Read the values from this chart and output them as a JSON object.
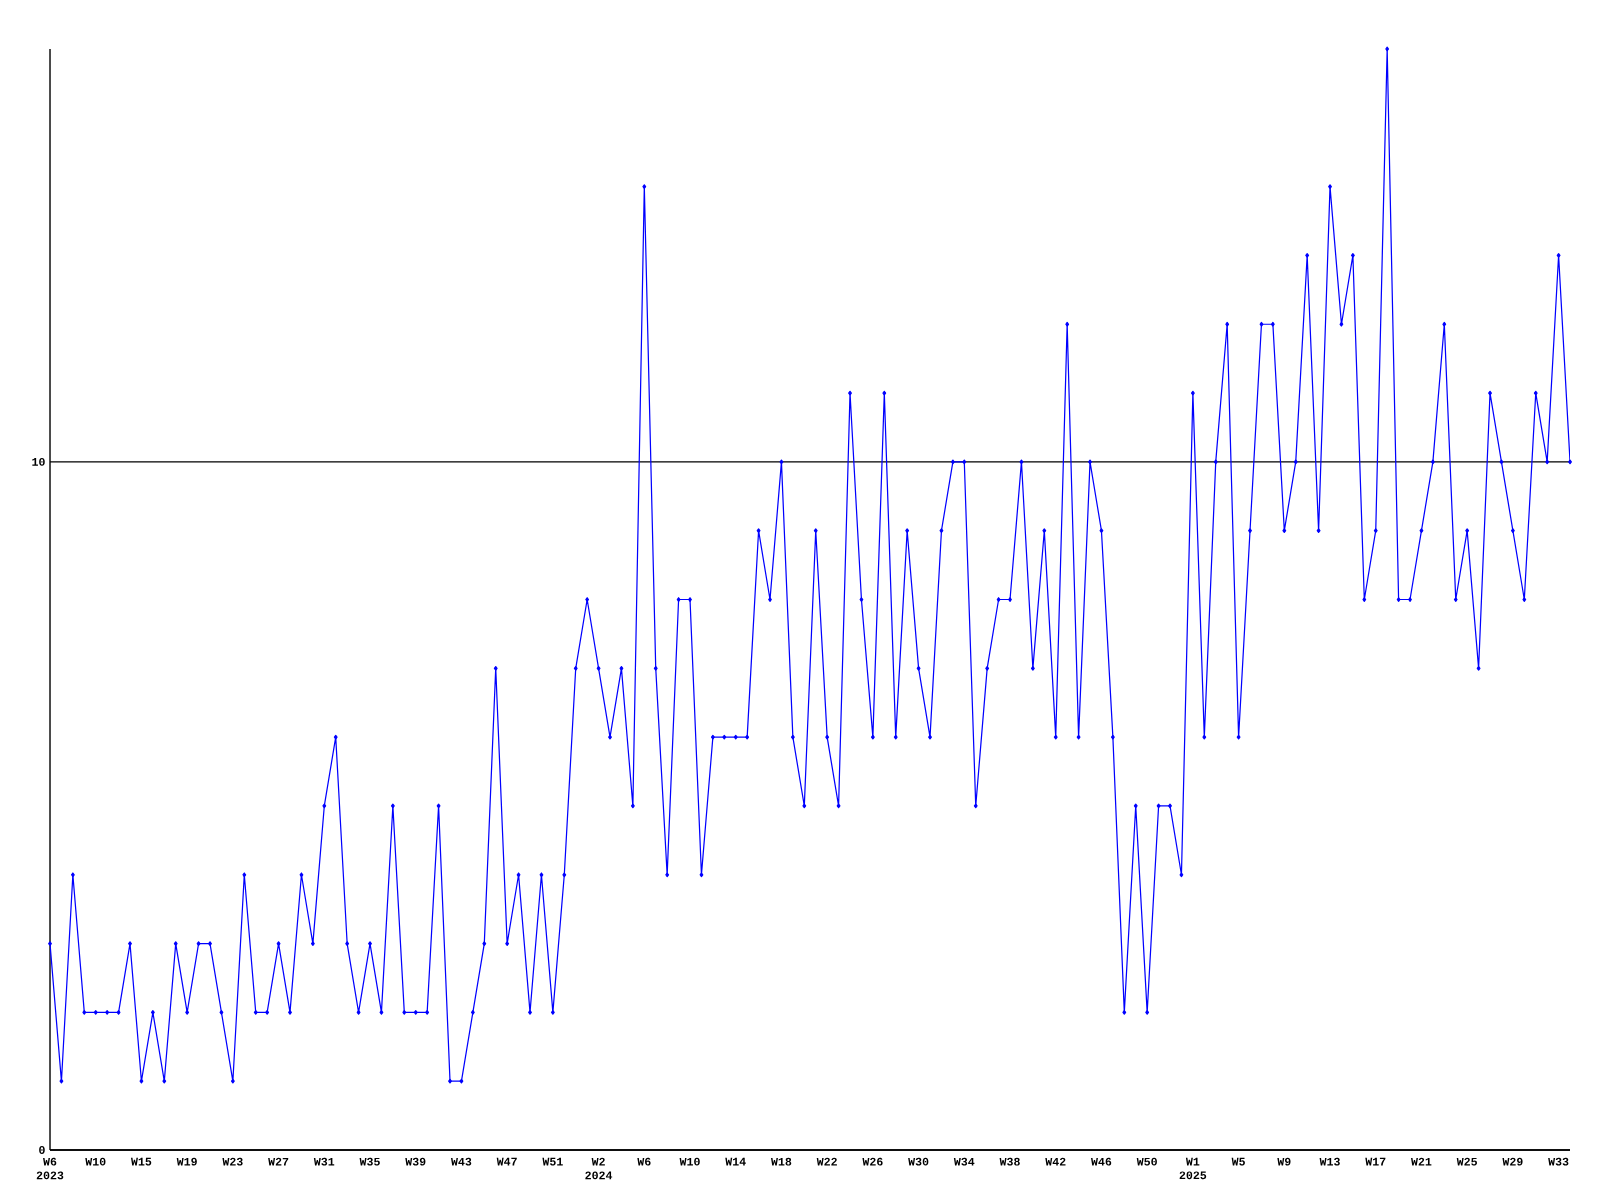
{
  "chart_data": {
    "type": "line",
    "categories": [
      "W6 2023",
      null,
      null,
      null,
      "W10",
      null,
      null,
      null,
      "W15",
      null,
      null,
      null,
      "W19",
      null,
      null,
      null,
      "W23",
      null,
      null,
      null,
      "W27",
      null,
      null,
      null,
      "W31",
      null,
      null,
      null,
      "W35",
      null,
      null,
      null,
      "W39",
      null,
      null,
      null,
      "W43",
      null,
      null,
      null,
      "W47",
      null,
      null,
      null,
      "W51",
      null,
      null,
      null,
      "W2 2024",
      null,
      null,
      null,
      "W6",
      null,
      null,
      null,
      "W10",
      null,
      null,
      null,
      "W14",
      null,
      null,
      null,
      "W18",
      null,
      null,
      null,
      "W22",
      null,
      null,
      null,
      "W26",
      null,
      null,
      null,
      "W30",
      null,
      null,
      null,
      "W34",
      null,
      null,
      null,
      "W38",
      null,
      null,
      null,
      "W42",
      null,
      null,
      null,
      "W46",
      null,
      null,
      null,
      "W50",
      null,
      null,
      null,
      "W1 2025",
      null,
      null,
      null,
      "W5",
      null,
      null,
      null,
      "W9",
      null,
      null,
      null,
      "W13",
      null,
      null,
      null,
      "W17",
      null,
      null,
      null,
      "W21",
      null,
      null,
      null,
      "W25",
      null,
      null,
      null,
      "W29",
      null,
      null,
      null,
      "W33",
      null
    ],
    "values": [
      3,
      1,
      4,
      2,
      2,
      2,
      2,
      3,
      1,
      2,
      1,
      3,
      2,
      3,
      3,
      2,
      1,
      4,
      2,
      2,
      3,
      2,
      4,
      3,
      5,
      6,
      3,
      2,
      3,
      2,
      5,
      2,
      2,
      2,
      5,
      1,
      1,
      2,
      3,
      7,
      3,
      4,
      2,
      4,
      2,
      4,
      7,
      8,
      7,
      6,
      7,
      5,
      14,
      7,
      4,
      8,
      8,
      4,
      6,
      6,
      6,
      6,
      9,
      8,
      10,
      6,
      5,
      9,
      6,
      5,
      11,
      8,
      6,
      11,
      6,
      9,
      7,
      6,
      9,
      10,
      10,
      5,
      7,
      8,
      8,
      10,
      7,
      9,
      6,
      12,
      6,
      10,
      9,
      6,
      2,
      5,
      2,
      5,
      5,
      4,
      11,
      6,
      10,
      12,
      6,
      9,
      12,
      12,
      9,
      10,
      13,
      9,
      14,
      12,
      13,
      8,
      9,
      16,
      8,
      8,
      9,
      10,
      12,
      8,
      9,
      7,
      11,
      10,
      9,
      8,
      11,
      10,
      13,
      10
    ],
    "color": "#0000ff",
    "marker": "diamond",
    "grid": "y",
    "ylim": [
      0,
      16
    ],
    "yticks": [
      0,
      10
    ]
  }
}
